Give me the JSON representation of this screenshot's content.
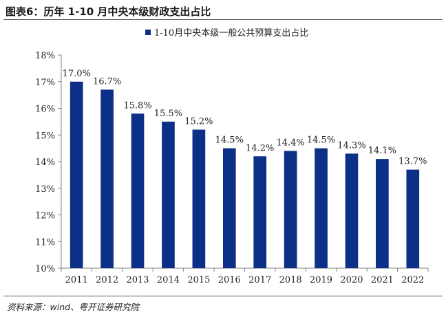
{
  "figure": {
    "title": "图表6：历年 1-10 月中央本级财政支出占比",
    "source": "资料来源：wind、粤开证券研究院"
  },
  "chart_data": {
    "type": "bar",
    "categories": [
      "2011",
      "2012",
      "2013",
      "2014",
      "2015",
      "2016",
      "2017",
      "2018",
      "2019",
      "2020",
      "2021",
      "2022"
    ],
    "series": [
      {
        "name": "1-10月中央本级一般公共预算支出占比",
        "values": [
          17.0,
          16.7,
          15.8,
          15.5,
          15.2,
          14.5,
          14.2,
          14.4,
          14.5,
          14.3,
          14.1,
          13.7
        ],
        "data_labels": [
          "17.0%",
          "16.7%",
          "15.8%",
          "15.5%",
          "15.2%",
          "14.5%",
          "14.2%",
          "14.4%",
          "14.5%",
          "14.3%",
          "14.1%",
          "13.7%"
        ]
      }
    ],
    "yticks": [
      {
        "value": 10,
        "label": "10%"
      },
      {
        "value": 11,
        "label": "11%"
      },
      {
        "value": 12,
        "label": "12%"
      },
      {
        "value": 13,
        "label": "13%"
      },
      {
        "value": 14,
        "label": "14%"
      },
      {
        "value": 15,
        "label": "15%"
      },
      {
        "value": 16,
        "label": "16%"
      },
      {
        "value": 17,
        "label": "17%"
      },
      {
        "value": 18,
        "label": "18%"
      }
    ],
    "ylim": [
      10,
      18
    ],
    "legend_position": "top-center",
    "grid": false,
    "colors": {
      "bar": "#0c2f87",
      "axis": "#7f7f7f",
      "text": "#222222"
    }
  }
}
